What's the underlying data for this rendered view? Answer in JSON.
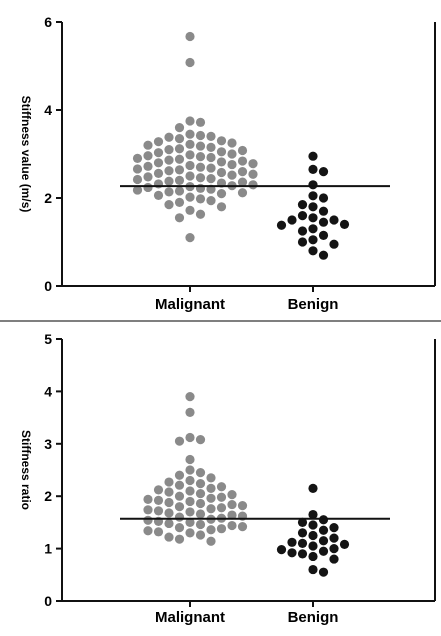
{
  "colors": {
    "malignant": "#8a8a8a",
    "benign": "#141414",
    "axis": "#111111",
    "divider": "#333333"
  },
  "chart_data": [
    {
      "type": "scatter",
      "ylabel": "Stiffness value (m/s)",
      "ylim": [
        0,
        6
      ],
      "yticks": [
        0,
        2,
        4,
        6
      ],
      "categories": [
        "Malignant",
        "Benign"
      ],
      "cutoff": 2.27,
      "series": [
        {
          "category": "Malignant",
          "values": [
            5.67,
            5.08,
            3.75,
            3.72,
            3.6,
            3.45,
            3.42,
            3.4,
            3.38,
            3.35,
            3.3,
            3.28,
            3.25,
            3.22,
            3.2,
            3.18,
            3.15,
            3.12,
            3.1,
            3.08,
            3.05,
            3.03,
            3.0,
            2.98,
            2.96,
            2.94,
            2.92,
            2.9,
            2.88,
            2.86,
            2.84,
            2.82,
            2.8,
            2.78,
            2.76,
            2.74,
            2.72,
            2.7,
            2.68,
            2.66,
            2.64,
            2.62,
            2.6,
            2.58,
            2.56,
            2.54,
            2.52,
            2.5,
            2.48,
            2.46,
            2.44,
            2.42,
            2.4,
            2.38,
            2.36,
            2.34,
            2.32,
            2.3,
            2.28,
            2.26,
            2.24,
            2.22,
            2.2,
            2.18,
            2.16,
            2.14,
            2.12,
            2.1,
            2.06,
            2.02,
            1.98,
            1.94,
            1.9,
            1.85,
            1.8,
            1.72,
            1.63,
            1.55,
            1.1
          ]
        },
        {
          "category": "Benign",
          "values": [
            2.95,
            2.65,
            2.6,
            2.3,
            2.05,
            2.0,
            1.85,
            1.8,
            1.7,
            1.6,
            1.55,
            1.5,
            1.5,
            1.45,
            1.4,
            1.38,
            1.3,
            1.25,
            1.15,
            1.05,
            1.0,
            0.95,
            0.8,
            0.7
          ]
        }
      ]
    },
    {
      "type": "scatter",
      "ylabel": "Stiffness ratio",
      "ylim": [
        0,
        5
      ],
      "yticks": [
        0,
        1,
        2,
        3,
        4,
        5
      ],
      "categories": [
        "Malignant",
        "Benign"
      ],
      "cutoff": 1.57,
      "series": [
        {
          "category": "Malignant",
          "values": [
            3.9,
            3.6,
            3.12,
            3.08,
            3.05,
            2.7,
            2.5,
            2.45,
            2.4,
            2.35,
            2.3,
            2.27,
            2.24,
            2.21,
            2.18,
            2.15,
            2.12,
            2.1,
            2.08,
            2.05,
            2.03,
            2.0,
            1.98,
            1.96,
            1.94,
            1.92,
            1.9,
            1.88,
            1.86,
            1.84,
            1.82,
            1.8,
            1.78,
            1.76,
            1.74,
            1.72,
            1.7,
            1.68,
            1.66,
            1.64,
            1.62,
            1.6,
            1.58,
            1.56,
            1.54,
            1.52,
            1.5,
            1.48,
            1.46,
            1.44,
            1.42,
            1.4,
            1.38,
            1.36,
            1.34,
            1.32,
            1.3,
            1.26,
            1.22,
            1.18,
            1.14
          ]
        },
        {
          "category": "Benign",
          "values": [
            2.15,
            1.65,
            1.55,
            1.5,
            1.45,
            1.4,
            1.35,
            1.3,
            1.25,
            1.2,
            1.15,
            1.12,
            1.1,
            1.08,
            1.05,
            1.0,
            0.98,
            0.95,
            0.92,
            0.9,
            0.85,
            0.8,
            0.6,
            0.55
          ]
        }
      ]
    }
  ]
}
